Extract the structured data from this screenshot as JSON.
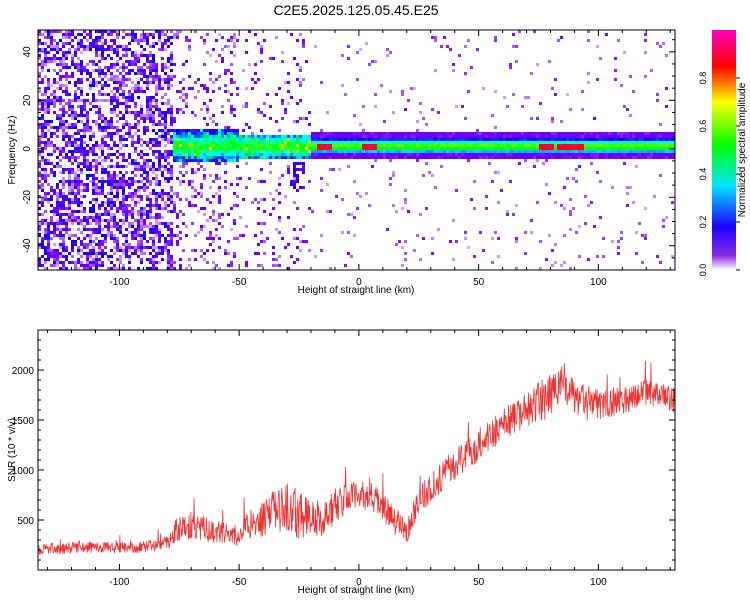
{
  "figure": {
    "title": "C2E5.2025.125.05.45.E25"
  },
  "chart_data": [
    {
      "type": "heatmap",
      "title": "C2E5.2025.125.05.45.E25",
      "xlabel": "Height of straight line (km)",
      "ylabel": "Frequency (Hz)",
      "xlim": [
        -134,
        132
      ],
      "ylim": [
        -50,
        49
      ],
      "xticks": [
        -100,
        -50,
        0,
        50,
        100
      ],
      "xtick_labels": [
        "-100",
        "-50",
        "0",
        "50",
        "100"
      ],
      "yticks": [
        -40,
        -20,
        0,
        20,
        40
      ],
      "ytick_labels": [
        "-40",
        "-20",
        "0",
        "20",
        "40"
      ],
      "colorbar": {
        "label": "Normalized spectral amplitude",
        "range": [
          0,
          1
        ],
        "ticks": [
          0.0,
          0.2,
          0.4,
          0.6,
          0.8
        ],
        "tick_labels": [
          "0.0",
          "0.2",
          "0.4",
          "0.6",
          "0.8"
        ],
        "colors": [
          "#ffffff",
          "#7b00ff",
          "#0000ff",
          "#00ffff",
          "#00ff00",
          "#ffff00",
          "#ff0000",
          "#ff00c0"
        ]
      },
      "description_values": {
        "noise_region_x": [
          -134,
          -78
        ],
        "transition_region_x": [
          -78,
          -20
        ],
        "band_center_hz": 1,
        "band_halfwidth_hz": 3,
        "peak_amplitude_x": [
          -14,
          4,
          78,
          86,
          91
        ]
      },
      "grid": false
    },
    {
      "type": "line",
      "xlabel": "Height of straight line (km)",
      "ylabel": "SNR (10 * v/v)",
      "xlim": [
        -134,
        132
      ],
      "ylim": [
        0,
        2400
      ],
      "xticks": [
        -100,
        -50,
        0,
        50,
        100
      ],
      "xtick_labels": [
        "-100",
        "-50",
        "0",
        "50",
        "100"
      ],
      "yticks": [
        500,
        1000,
        1500,
        2000
      ],
      "ytick_labels": [
        "500",
        "1000",
        "1500",
        "2000"
      ],
      "series": [
        {
          "color": "#ee3333",
          "x": [
            -134,
            -120,
            -110,
            -100,
            -90,
            -80,
            -75,
            -70,
            -60,
            -50,
            -45,
            -40,
            -35,
            -30,
            -25,
            -20,
            -15,
            -10,
            -5,
            0,
            5,
            10,
            15,
            20,
            25,
            30,
            40,
            50,
            60,
            70,
            80,
            85,
            90,
            100,
            110,
            120,
            132
          ],
          "y": [
            210,
            220,
            230,
            220,
            230,
            280,
            430,
            450,
            380,
            340,
            480,
            500,
            600,
            620,
            560,
            530,
            500,
            640,
            720,
            760,
            720,
            640,
            480,
            400,
            700,
            820,
            1050,
            1250,
            1450,
            1600,
            1750,
            1850,
            1720,
            1650,
            1700,
            1780,
            1700
          ],
          "spread": [
            110,
            110,
            110,
            110,
            110,
            120,
            300,
            280,
            220,
            200,
            320,
            350,
            420,
            500,
            500,
            420,
            350,
            350,
            300,
            250,
            300,
            300,
            250,
            250,
            300,
            300,
            300,
            320,
            330,
            350,
            450,
            400,
            350,
            300,
            280,
            250,
            250
          ]
        }
      ],
      "grid": false
    }
  ]
}
